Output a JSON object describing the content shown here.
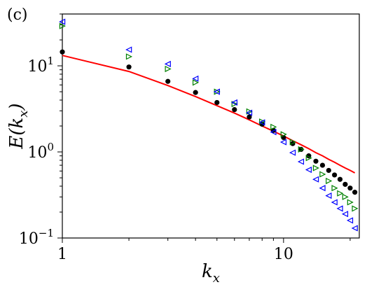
{
  "panel_label": "(c)",
  "chart_data": {
    "type": "scatter",
    "xlabel": "k_x",
    "ylabel": "E(k_x)",
    "xscale": "log",
    "yscale": "log",
    "xlim": [
      1,
      22
    ],
    "ylim": [
      0.1,
      40
    ],
    "grid": false,
    "legend": "none",
    "x_tick_labels": [
      {
        "value": 1,
        "label": "1"
      },
      {
        "value": 10,
        "label": "10"
      }
    ],
    "y_tick_labels": [
      {
        "value": 0.1,
        "label": "10^-1"
      },
      {
        "value": 1,
        "label": "10^0"
      },
      {
        "value": 10,
        "label": "10^1"
      }
    ],
    "series": [
      {
        "marker": "line",
        "color": "#ff0000",
        "x": [
          1,
          2,
          3,
          4,
          5,
          6,
          7,
          8,
          9,
          10,
          11,
          12,
          13,
          14,
          15,
          16,
          17,
          18,
          19,
          20,
          21
        ],
        "values": [
          13.2,
          8.6,
          5.9,
          4.4,
          3.45,
          2.82,
          2.36,
          2.0,
          1.74,
          1.53,
          1.35,
          1.21,
          1.09,
          0.98,
          0.9,
          0.82,
          0.76,
          0.7,
          0.65,
          0.61,
          0.57
        ]
      },
      {
        "marker": "circle",
        "color": "#000000",
        "x": [
          1,
          2,
          3,
          4,
          5,
          6,
          7,
          8,
          9,
          10,
          11,
          12,
          13,
          14,
          15,
          16,
          17,
          18,
          19,
          20,
          21
        ],
        "values": [
          14.5,
          9.7,
          6.6,
          4.9,
          3.75,
          3.1,
          2.55,
          2.1,
          1.78,
          1.47,
          1.25,
          1.07,
          0.9,
          0.78,
          0.7,
          0.61,
          0.54,
          0.48,
          0.42,
          0.38,
          0.34
        ]
      },
      {
        "marker": "triangle-right",
        "color": "#008000",
        "x": [
          1,
          2,
          3,
          4,
          5,
          6,
          7,
          8,
          9,
          10,
          11,
          12,
          13,
          14,
          15,
          16,
          17,
          18,
          19,
          20,
          21
        ],
        "values": [
          29,
          12.8,
          9.2,
          6.4,
          5.0,
          3.6,
          2.95,
          2.25,
          1.95,
          1.6,
          1.3,
          1.07,
          0.85,
          0.65,
          0.55,
          0.46,
          0.38,
          0.33,
          0.3,
          0.26,
          0.22
        ]
      },
      {
        "marker": "triangle-left",
        "color": "#0000ff",
        "x": [
          1,
          2,
          3,
          4,
          5,
          6,
          7,
          8,
          9,
          10,
          11,
          12,
          13,
          14,
          15,
          16,
          17,
          18,
          19,
          20,
          21
        ],
        "values": [
          32.5,
          15.4,
          10.5,
          7.1,
          5.0,
          3.75,
          2.85,
          2.2,
          1.7,
          1.3,
          0.98,
          0.77,
          0.62,
          0.48,
          0.38,
          0.31,
          0.26,
          0.22,
          0.19,
          0.16,
          0.13
        ]
      }
    ]
  }
}
